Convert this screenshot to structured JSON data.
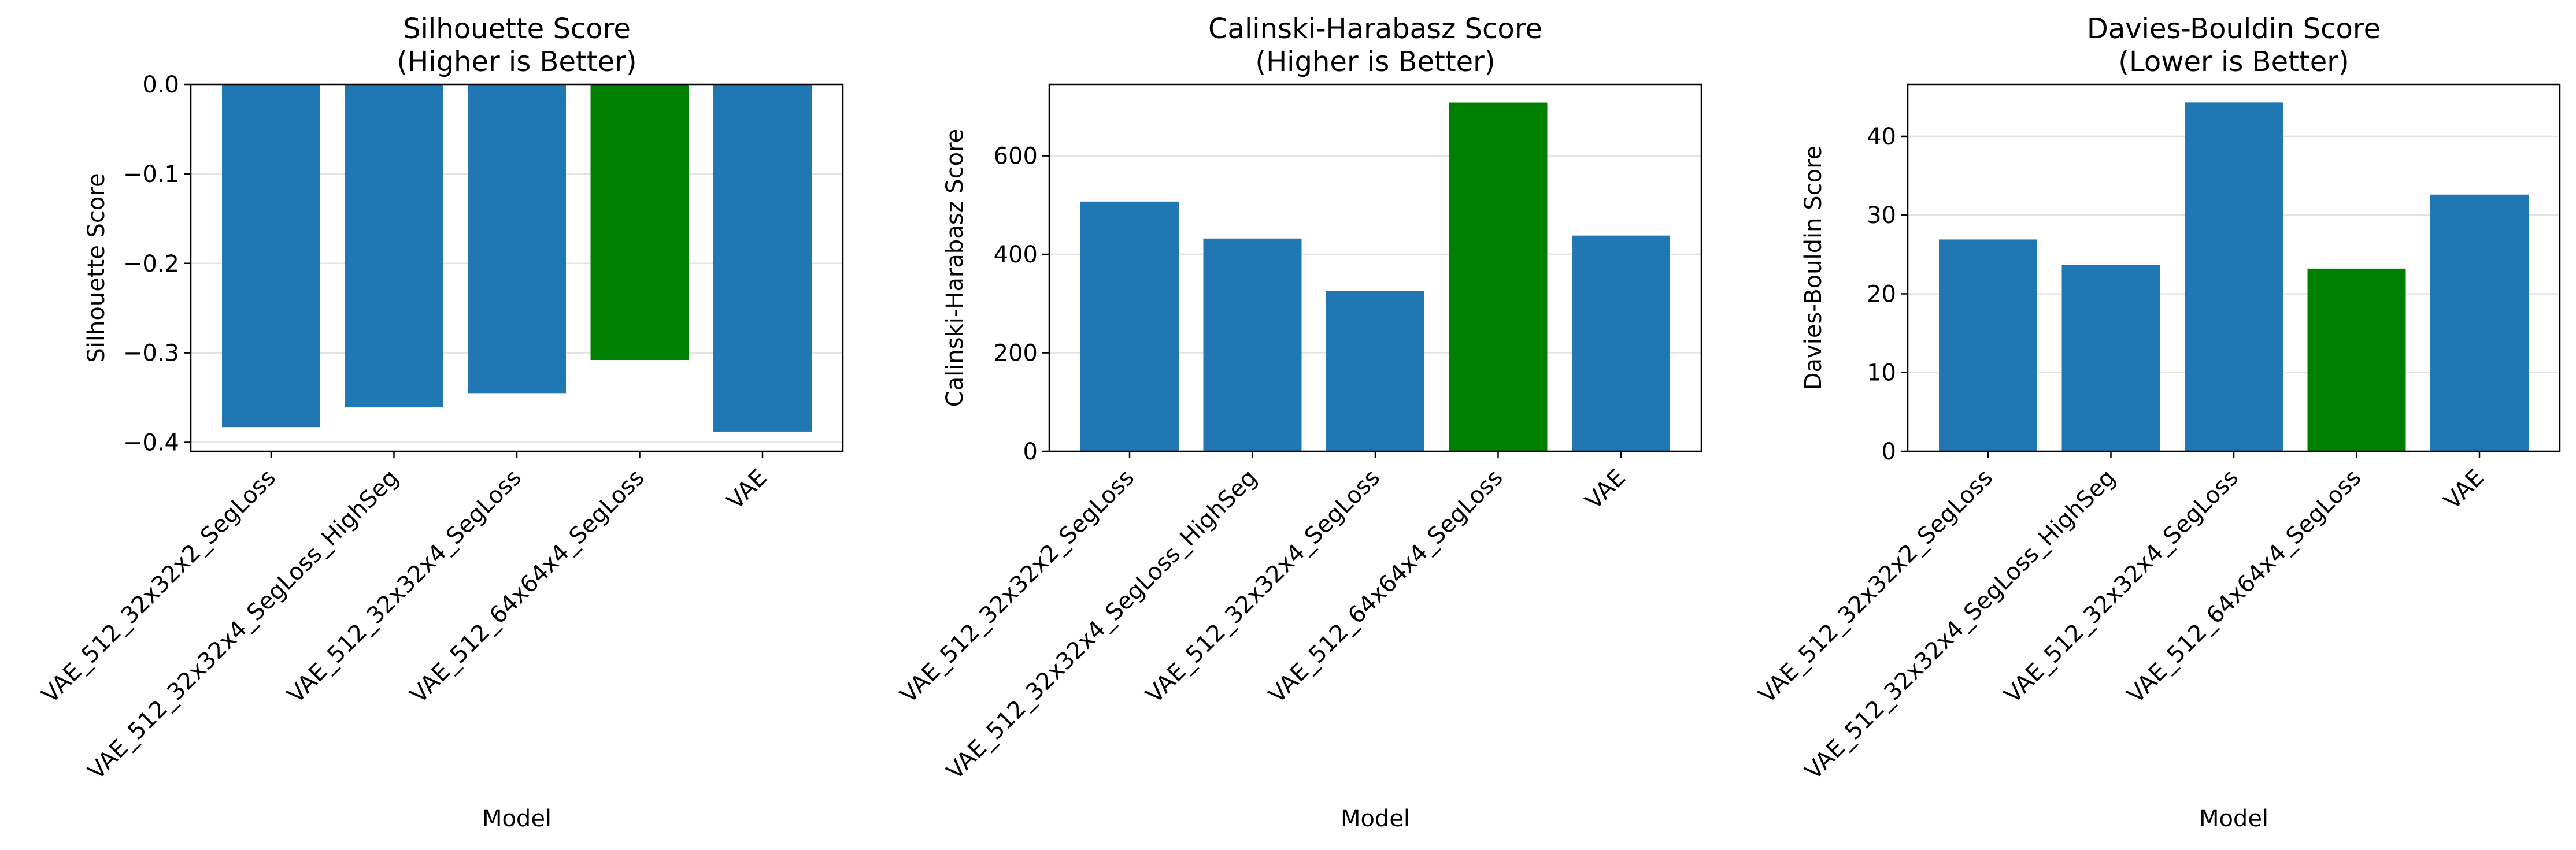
{
  "chart_data": [
    {
      "type": "bar",
      "title_line1": "Silhouette Score",
      "title_line2": "(Higher is Better)",
      "xlabel": "Model",
      "ylabel": "Silhouette Score",
      "categories": [
        "VAE_512_32x32x2_SegLoss",
        "VAE_512_32x32x4_SegLoss_HighSeg",
        "VAE_512_32x32x4_SegLoss",
        "VAE_512_64x64x4_SegLoss",
        "VAE"
      ],
      "values": [
        -0.383,
        -0.361,
        -0.345,
        -0.308,
        -0.388
      ],
      "best_index": 3,
      "ylim": [
        -0.41,
        0.0
      ],
      "yticks": [
        0.0,
        -0.1,
        -0.2,
        -0.3,
        -0.4
      ],
      "ytick_labels": [
        "0.0",
        "−0.1",
        "−0.2",
        "−0.3",
        "−0.4"
      ],
      "grid": "y"
    },
    {
      "type": "bar",
      "title_line1": "Calinski-Harabasz Score",
      "title_line2": "(Higher is Better)",
      "xlabel": "Model",
      "ylabel": "Calinski-Harabasz Score",
      "categories": [
        "VAE_512_32x32x2_SegLoss",
        "VAE_512_32x32x4_SegLoss_HighSeg",
        "VAE_512_32x32x4_SegLoss",
        "VAE_512_64x64x4_SegLoss",
        "VAE"
      ],
      "values": [
        507,
        432,
        326,
        708,
        438
      ],
      "best_index": 3,
      "ylim": [
        0,
        745
      ],
      "yticks": [
        0,
        200,
        400,
        600
      ],
      "ytick_labels": [
        "0",
        "200",
        "400",
        "600"
      ],
      "grid": "y"
    },
    {
      "type": "bar",
      "title_line1": "Davies-Bouldin Score",
      "title_line2": "(Lower is Better)",
      "xlabel": "Model",
      "ylabel": "Davies-Bouldin Score",
      "categories": [
        "VAE_512_32x32x2_SegLoss",
        "VAE_512_32x32x4_SegLoss_HighSeg",
        "VAE_512_32x32x4_SegLoss",
        "VAE_512_64x64x4_SegLoss",
        "VAE"
      ],
      "values": [
        26.9,
        23.7,
        44.3,
        23.2,
        32.6
      ],
      "best_index": 3,
      "ylim": [
        0,
        46.6
      ],
      "yticks": [
        0,
        10,
        20,
        30,
        40
      ],
      "ytick_labels": [
        "0",
        "10",
        "20",
        "30",
        "40"
      ],
      "grid": "y"
    }
  ],
  "colors": {
    "bar": "#1f77b4",
    "best_bar": "#008000"
  }
}
